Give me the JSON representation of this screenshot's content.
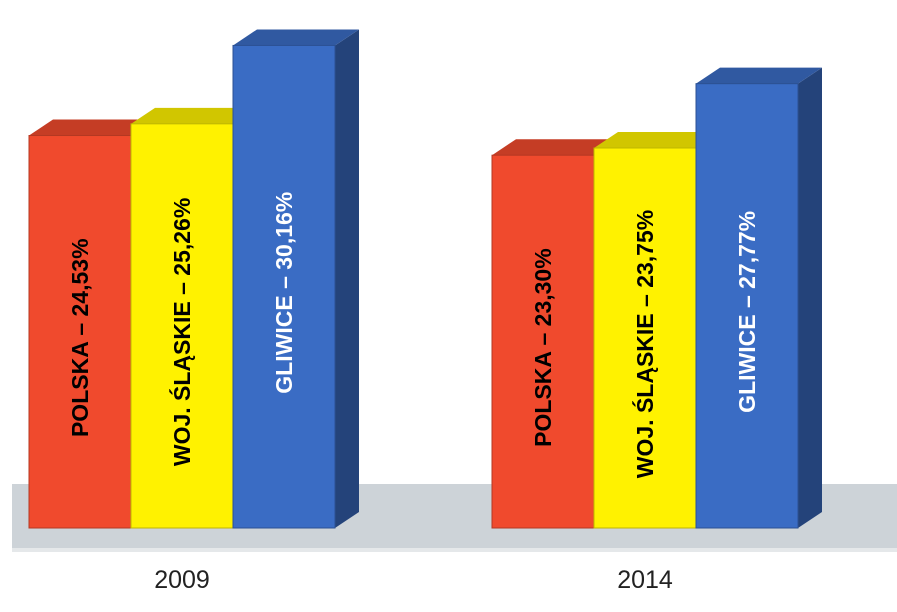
{
  "chart_data": {
    "type": "bar",
    "style": "3d-grouped",
    "categories": [
      "2009",
      "2014"
    ],
    "groups": [
      {
        "category": "2009",
        "bars": [
          {
            "label": "POLSKA – 24,53%",
            "value": 24.53,
            "color": "#f04a2d",
            "text_color": "#000000"
          },
          {
            "label": "WOJ. ŚLĄSKIE – 25,26%",
            "value": 25.26,
            "color": "#fff200",
            "text_color": "#000000"
          },
          {
            "label": "GLIWICE – 30,16%",
            "value": 30.16,
            "color": "#3a6cc4",
            "text_color": "#ffffff"
          }
        ]
      },
      {
        "category": "2014",
        "bars": [
          {
            "label": "POLSKA – 23,30%",
            "value": 23.3,
            "color": "#f04a2d",
            "text_color": "#000000"
          },
          {
            "label": "WOJ. ŚLĄSKIE – 23,75%",
            "value": 23.75,
            "color": "#fff200",
            "text_color": "#000000"
          },
          {
            "label": "GLIWICE – 27,77%",
            "value": 27.77,
            "color": "#3a6cc4",
            "text_color": "#ffffff"
          }
        ]
      }
    ],
    "colors": {
      "floor": "#cdd3d8",
      "floor_shadow": "#e5e8ea",
      "blue_side": "#3f4a9c",
      "red_top": "#c8321c",
      "yellow_top": "#e2cf00",
      "blue_top": "#2d3f9a"
    },
    "grid": false,
    "legend": "none"
  }
}
